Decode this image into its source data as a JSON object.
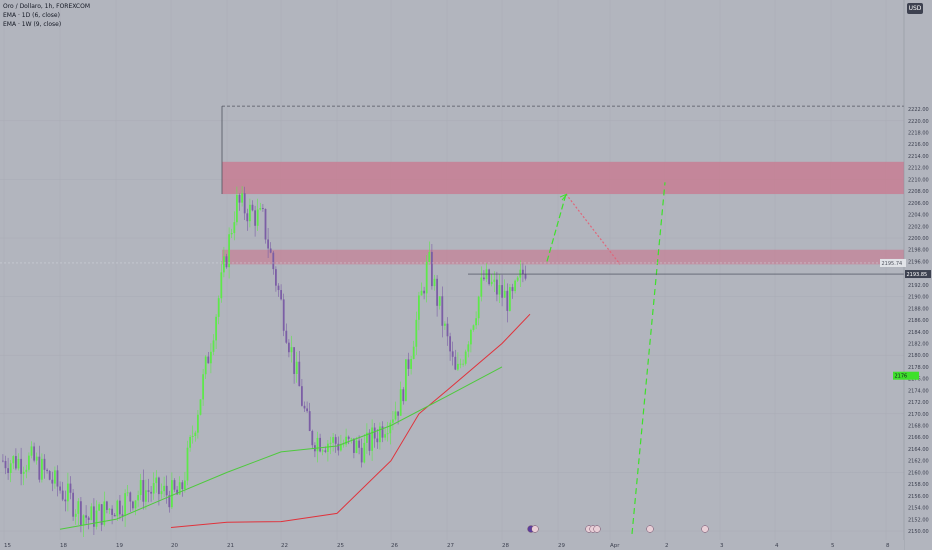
{
  "legend": {
    "title": "Oro / Dollaro, 1h, FOREXCOM",
    "ema1": "EMA · 1D (6, close)",
    "ema2": "EMA · 1W (9, close)"
  },
  "currency": "USD",
  "price_tags": {
    "current": "2193.85",
    "crosshair": "2195.74",
    "indicator": "2176"
  },
  "colors": {
    "background": "#b2b5be",
    "up": "#5ee84b",
    "down": "#7b5ea5",
    "zone": "#c9778e",
    "ema_1d": "#e0323b",
    "ema_1w": "#4ec93d",
    "projection_up": "#3ee02b",
    "projection_down": "#e0667a"
  },
  "chart_data": {
    "type": "candlestick",
    "symbol": "Oro / Dollaro, 1h, FOREXCOM",
    "y_ticks": [
      2150,
      2152,
      2154,
      2156,
      2158,
      2160,
      2162,
      2164,
      2166,
      2168,
      2170,
      2172,
      2174,
      2176,
      2178,
      2180,
      2182,
      2184,
      2186,
      2188,
      2190,
      2192,
      2194,
      2196,
      2198,
      2200,
      2202,
      2204,
      2206,
      2208,
      2210,
      2212,
      2214,
      2216,
      2218,
      2220,
      2222
    ],
    "y_tick_labels": [
      "2150.00",
      "2152.00",
      "2154.00",
      "2156.00",
      "2158.00",
      "2160.00",
      "2162.00",
      "2164.00",
      "2166.00",
      "2168.00",
      "2170.00",
      "2172.00",
      "2174.00",
      "2176.00",
      "2178.00",
      "2180.00",
      "2182.00",
      "2184.00",
      "2186.00",
      "2188.00",
      "2190.00",
      "2192.00",
      "2194.00",
      "2196.00",
      "2198.00",
      "2200.00",
      "2202.00",
      "2204.00",
      "2206.00",
      "2208.00",
      "2210.00",
      "2212.00",
      "2214.00",
      "2216.00",
      "2218.00",
      "2220.00",
      "2222.00"
    ],
    "ylim": [
      2149.5,
      2224.5
    ],
    "x_tick_labels": [
      "15",
      "18",
      "19",
      "20",
      "21",
      "22",
      "25",
      "26",
      "27",
      "28",
      "29",
      "Apr",
      "2",
      "3",
      "4",
      "5",
      "8"
    ],
    "key_points": [
      {
        "time": "15",
        "close": 2162
      },
      {
        "time": "18",
        "close": 2152
      },
      {
        "time": "19",
        "close": 2157
      },
      {
        "time": "20",
        "close": 2156
      },
      {
        "time": "20",
        "close": 2180
      },
      {
        "time": "21",
        "close": 2206
      },
      {
        "time": "21",
        "close": 2203
      },
      {
        "time": "22",
        "close": 2166
      },
      {
        "time": "25",
        "close": 2164
      },
      {
        "time": "26",
        "close": 2172
      },
      {
        "time": "26",
        "close": 2196
      },
      {
        "time": "27",
        "close": 2176
      },
      {
        "time": "27",
        "close": 2193
      },
      {
        "time": "28",
        "close": 2189
      },
      {
        "time": "28",
        "close": 2197
      },
      {
        "time": "28",
        "close": 2194
      }
    ],
    "ema_1d": [
      {
        "time": "20",
        "value": 2150.6
      },
      {
        "time": "21",
        "value": 2151.5
      },
      {
        "time": "22",
        "value": 2151.6
      },
      {
        "time": "25",
        "value": 2153
      },
      {
        "time": "26",
        "value": 2162
      },
      {
        "time": "26",
        "value": 2170
      },
      {
        "time": "27",
        "value": 2174
      },
      {
        "time": "28",
        "value": 2182
      },
      {
        "time": "28",
        "value": 2187
      }
    ],
    "ema_1w": [
      {
        "time": "18",
        "value": 2150.3
      },
      {
        "time": "19",
        "value": 2152
      },
      {
        "time": "20",
        "value": 2156
      },
      {
        "time": "21",
        "value": 2160
      },
      {
        "time": "22",
        "value": 2163.5
      },
      {
        "time": "25",
        "value": 2164.5
      },
      {
        "time": "26",
        "value": 2168
      },
      {
        "time": "27",
        "value": 2173
      },
      {
        "time": "28",
        "value": 2178
      }
    ],
    "zones": [
      {
        "from": 2207.5,
        "to": 2213
      },
      {
        "from": 2195.5,
        "to": 2198
      }
    ],
    "current_price": 2193.85,
    "crosshair_price": 2195.74,
    "top_level": 2222.5,
    "projection_up": [
      {
        "time": "28",
        "value": 2196
      },
      {
        "time": "29",
        "value": 2207.5
      }
    ],
    "projection_down": [
      {
        "time": "29",
        "value": 2207.5
      },
      {
        "time": "Apr",
        "value": 2195.5
      }
    ],
    "projection_long": [
      {
        "time": "Apr",
        "value": 2149.5
      },
      {
        "time": "2",
        "value": 2209.5
      }
    ],
    "grid": true
  }
}
